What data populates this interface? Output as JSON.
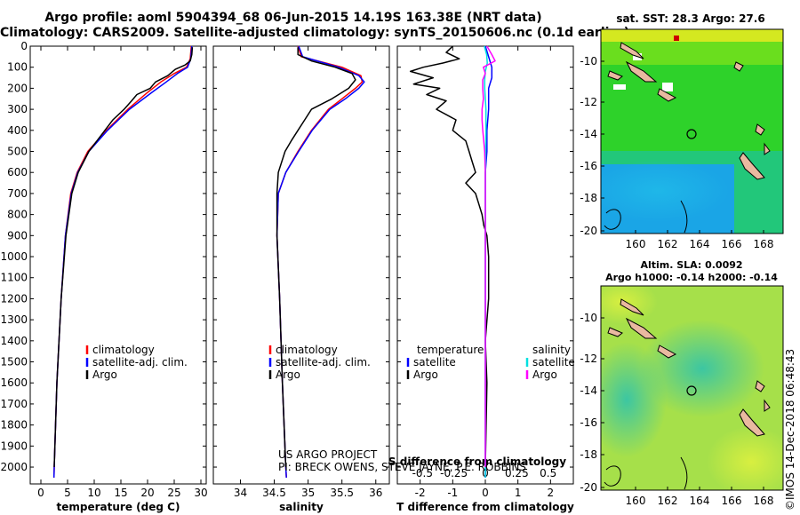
{
  "header": {
    "title_line1": "Argo profile: aoml 5904394_68 06-Jun-2015 14.19S 163.38E (NRT data)",
    "title_line2": "Climatology: CARS2009. Satellite-adjusted climatology: synTS_20150606.nc (0.1d earlier)"
  },
  "credit": {
    "project": "US ARGO PROJECT",
    "pi": "PI: BRECK OWENS, STEVE JAYNE, P.E. ROBBINS"
  },
  "colors": {
    "climatology": "#ff0000",
    "satellite": "#0000ff",
    "argo": "#000000",
    "sat_salinity": "#00e0e0",
    "argo_salinity": "#ff00ff"
  },
  "chart_data": [
    {
      "type": "line",
      "id": "temperature",
      "xlabel": "temperature (deg C)",
      "ylabel": "",
      "xlim": [
        -2,
        31
      ],
      "ylim": [
        2080,
        0
      ],
      "xticks": [
        0,
        5,
        10,
        15,
        20,
        25,
        30
      ],
      "yticks": [
        0,
        100,
        200,
        300,
        400,
        500,
        600,
        700,
        800,
        900,
        1000,
        1100,
        1200,
        1300,
        1400,
        1500,
        1600,
        1700,
        1800,
        1900,
        2000
      ],
      "ytick_labels": [
        "0",
        "100",
        "200",
        "300",
        "400",
        "500",
        "600",
        "700",
        "800",
        "900",
        "1000",
        "1100",
        "1200",
        "1300",
        "1400",
        "1500",
        "1600",
        "1700",
        "1800",
        "1900",
        "2000"
      ],
      "legend": [
        "climatology",
        "satellite-adj. clim.",
        "Argo"
      ],
      "series": [
        {
          "name": "climatology",
          "color": "#ff0000",
          "depth": [
            0,
            60,
            100,
            130,
            170,
            220,
            300,
            400,
            500,
            600,
            700,
            900,
            1200,
            1600,
            2000,
            2050
          ],
          "values": [
            28.2,
            28.0,
            27.3,
            25.0,
            22.5,
            20.0,
            16.3,
            12.3,
            8.8,
            6.8,
            5.6,
            4.6,
            3.8,
            3.0,
            2.5,
            2.45
          ]
        },
        {
          "name": "satellite-adj. clim.",
          "color": "#0000ff",
          "depth": [
            0,
            60,
            100,
            130,
            170,
            220,
            300,
            400,
            500,
            600,
            700,
            900,
            1200,
            1600,
            2000,
            2050
          ],
          "values": [
            28.3,
            28.1,
            27.5,
            25.6,
            23.5,
            20.8,
            16.6,
            12.5,
            9.0,
            6.9,
            5.7,
            4.6,
            3.8,
            3.0,
            2.5,
            2.45
          ]
        },
        {
          "name": "Argo",
          "color": "#000000",
          "depth": [
            5,
            40,
            70,
            90,
            110,
            140,
            170,
            200,
            230,
            260,
            300,
            350,
            400,
            450,
            500,
            600,
            700,
            900,
            1200,
            1600,
            2000
          ],
          "values": [
            28.4,
            28.3,
            28.0,
            27.0,
            25.2,
            23.8,
            21.5,
            20.5,
            18.0,
            17.0,
            15.6,
            13.5,
            12.0,
            10.5,
            9.0,
            7.0,
            5.8,
            4.7,
            3.8,
            3.0,
            2.5
          ]
        }
      ]
    },
    {
      "type": "line",
      "id": "salinity",
      "xlabel": "salinity",
      "ylabel": "",
      "xlim": [
        33.6,
        36.2
      ],
      "ylim": [
        2080,
        0
      ],
      "xticks": [
        34,
        34.5,
        35,
        35.5,
        36
      ],
      "xtick_labels": [
        "34",
        "34.5",
        "35",
        "35.5",
        "36"
      ],
      "legend": [
        "climatology",
        "satellite-adj. clim.",
        "Argo"
      ],
      "series": [
        {
          "name": "climatology",
          "color": "#ff0000",
          "depth": [
            0,
            50,
            100,
            140,
            170,
            200,
            250,
            300,
            400,
            500,
            600,
            700,
            900,
            1200,
            1600,
            2000,
            2050
          ],
          "values": [
            34.85,
            34.9,
            35.5,
            35.78,
            35.8,
            35.7,
            35.5,
            35.3,
            35.05,
            34.85,
            34.67,
            34.56,
            34.54,
            34.58,
            34.62,
            34.67,
            34.68
          ]
        },
        {
          "name": "satellite-adj. clim.",
          "color": "#0000ff",
          "depth": [
            0,
            50,
            100,
            140,
            170,
            200,
            250,
            300,
            400,
            500,
            600,
            700,
            900,
            1200,
            1600,
            2000,
            2050
          ],
          "values": [
            34.86,
            34.92,
            35.45,
            35.75,
            35.83,
            35.75,
            35.55,
            35.32,
            35.06,
            34.86,
            34.67,
            34.56,
            34.54,
            34.58,
            34.62,
            34.67,
            34.68
          ]
        },
        {
          "name": "Argo",
          "color": "#000000",
          "depth": [
            5,
            40,
            70,
            100,
            130,
            160,
            200,
            250,
            300,
            350,
            400,
            450,
            500,
            600,
            700,
            900,
            1200,
            1600,
            2000
          ],
          "values": [
            34.85,
            34.85,
            35.05,
            35.4,
            35.65,
            35.7,
            35.6,
            35.35,
            35.05,
            34.95,
            34.85,
            34.75,
            34.66,
            34.56,
            34.54,
            34.54,
            34.58,
            34.62,
            34.67
          ]
        }
      ]
    },
    {
      "type": "line",
      "id": "difference",
      "xlabel": "T difference from climatology",
      "x2label": "S difference from climatology",
      "xlim": [
        -2.7,
        2.7
      ],
      "ylim": [
        2080,
        0
      ],
      "xticks": [
        -2,
        -1,
        0,
        1,
        2
      ],
      "xtick_labels": [
        "-2",
        "-1",
        "0",
        "1",
        "2"
      ],
      "x2ticks": [
        -0.5,
        -0.25,
        0,
        0.25,
        0.5
      ],
      "x2tick_labels": [
        "-0.5",
        "-0.25",
        "0",
        "0.25",
        "0.5"
      ],
      "legend": [
        "temperature",
        "satellite",
        "Argo",
        "salinity",
        "satellite",
        "Argo"
      ],
      "series": [
        {
          "name": "T satellite",
          "color": "#0000ff",
          "depth": [
            0,
            50,
            100,
            150,
            200,
            300,
            400,
            500,
            600,
            800,
            1200,
            1600,
            2000,
            2050
          ],
          "values": [
            0.0,
            0.1,
            0.2,
            0.2,
            0.1,
            0.1,
            0.05,
            0.05,
            0.0,
            0.0,
            0.0,
            0.0,
            0.0,
            0.0
          ]
        },
        {
          "name": "T Argo",
          "color": "#000000",
          "depth": [
            0,
            30,
            60,
            80,
            100,
            120,
            150,
            180,
            200,
            230,
            260,
            300,
            350,
            400,
            450,
            500,
            550,
            600,
            650,
            700,
            750,
            800,
            850,
            900,
            1000,
            1200,
            1400,
            1600,
            2000
          ],
          "values": [
            -1.0,
            -1.2,
            -0.8,
            -1.3,
            -1.9,
            -2.3,
            -1.6,
            -2.2,
            -1.4,
            -1.8,
            -1.2,
            -1.5,
            -0.9,
            -1.0,
            -0.6,
            -0.5,
            -0.4,
            -0.3,
            -0.6,
            -0.3,
            -0.2,
            -0.1,
            -0.05,
            0.05,
            0.1,
            0.1,
            0.0,
            0.05,
            0.0
          ]
        },
        {
          "name": "S satellite",
          "color": "#00e0e0",
          "depth": [
            0,
            40,
            80,
            120,
            160,
            200,
            300,
            400,
            500,
            700,
            1000,
            1400,
            2000,
            2050
          ],
          "values": [
            -0.03,
            0.04,
            0.06,
            0.0,
            -0.02,
            -0.02,
            0.02,
            0.02,
            0.01,
            0.0,
            0.0,
            0.0,
            0.0,
            0.0
          ]
        },
        {
          "name": "S Argo",
          "color": "#ff00ff",
          "depth": [
            0,
            40,
            70,
            100,
            130,
            160,
            200,
            250,
            300,
            350,
            400,
            450,
            500,
            600,
            700,
            900,
            1200,
            1600,
            2000
          ],
          "values": [
            0.05,
            0.2,
            0.3,
            -0.06,
            0.0,
            -0.08,
            -0.08,
            -0.06,
            -0.1,
            -0.1,
            -0.08,
            -0.05,
            -0.02,
            0.0,
            0.0,
            0.0,
            0.0,
            0.0,
            0.0
          ]
        }
      ]
    }
  ],
  "maps": {
    "sst": {
      "title": "sat. SST: 28.3 Argo: 27.6",
      "xticks": [
        "160",
        "162",
        "164",
        "166",
        "168"
      ],
      "yticks": [
        "-10",
        "-12",
        "-14",
        "-16",
        "-18",
        "-20"
      ]
    },
    "sla": {
      "title_line1": "Altim. SLA: 0.0092",
      "title_line2": "Argo h1000: -0.14 h2000: -0.14",
      "xticks": [
        "160",
        "162",
        "164",
        "166",
        "168"
      ],
      "yticks": [
        "-10",
        "-12",
        "-14",
        "-16",
        "-18",
        "-20"
      ],
      "side_label": "©IMOS 14-Dec-2018 06:48:43"
    }
  }
}
